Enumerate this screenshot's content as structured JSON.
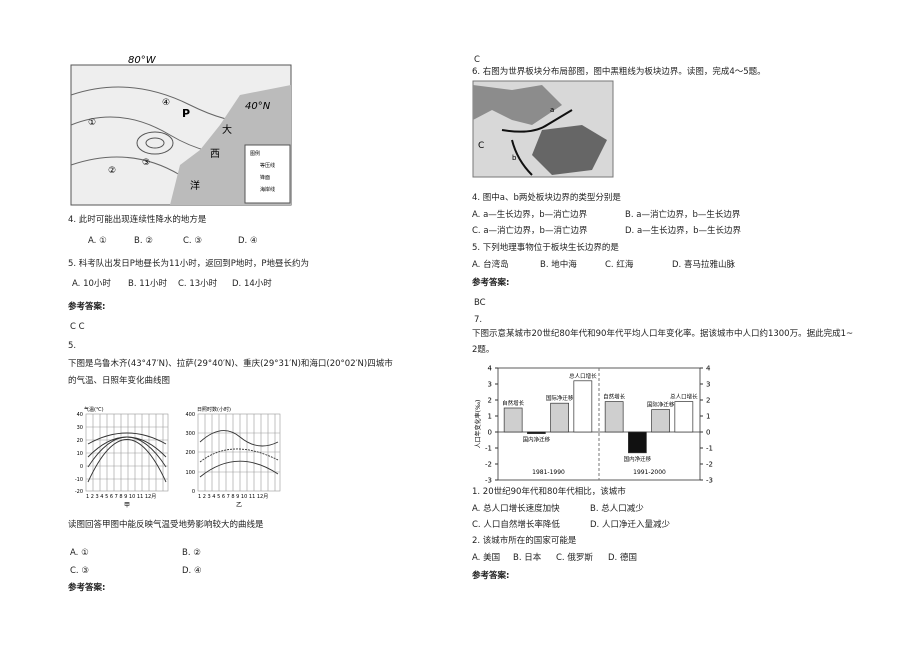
{
  "left": {
    "fig1": {
      "labels": [
        "80°W",
        "40°N",
        "P",
        "大",
        "西",
        "洋",
        "①",
        "②",
        "③",
        "④"
      ],
      "legend": [
        "图例",
        "等压线",
        "锋面",
        "海岸线"
      ]
    },
    "q4": {
      "stem": "4. 此时可能出现连续性降水的地方是",
      "options": [
        "A. ①",
        "B. ②",
        "C. ③",
        "D. ④"
      ]
    },
    "q5": {
      "stem": "5. 科考队出发日P地昼长为11小时，返回到P地时，P地昼长约为",
      "options": [
        "A. 10小时",
        "B. 11小时",
        "C. 13小时",
        "D. 14小时"
      ]
    },
    "answer_label": "参考答案:",
    "answer": "C  C",
    "q_num": "5.",
    "intro": [
      "下图是乌鲁木齐(43°47′N)、拉萨(29°40′N)、重庆(29°31′N)和海口(20°02′N)四城市",
      "的气温、日照年变化曲线图"
    ],
    "fig2": {
      "left_title": "气温(℃)",
      "right_title": "日照时数(小时)",
      "left_ticks": [
        "40",
        "30",
        "20",
        "10",
        "0",
        "-10",
        "-20"
      ],
      "right_ticks": [
        "400",
        "300",
        "200",
        "100",
        "0"
      ],
      "months": "1 2 3 4 5 6 7 8 9 10 11 12月",
      "captions": [
        "甲",
        "乙"
      ]
    },
    "question": "读图回答甲图中能反映气温受地势影响较大的曲线是",
    "options": [
      "A. ①",
      "B. ②",
      "C. ③",
      "D. ④"
    ],
    "answer_label2": "参考答案:"
  },
  "right": {
    "pre": "C",
    "q6": "6. 右图为世界板块分布局部图，图中黑粗线为板块边界。读图，完成4～5题。",
    "fig3": {
      "labels": [
        "a",
        "b",
        "C"
      ]
    },
    "q4": {
      "stem": "4. 图中a、b两处板块边界的类型分别是",
      "options": [
        "A. a—生长边界，b—消亡边界",
        "B. a—消亡边界，b—生长边界",
        "C. a—消亡边界，b—消亡边界",
        "D. a—生长边界，b—生长边界"
      ]
    },
    "q5": {
      "stem": "5. 下列地理事物位于板块生长边界的是",
      "options": [
        "A. 台湾岛",
        "B. 地中海",
        "C. 红海",
        "D. 喜马拉雅山脉"
      ]
    },
    "answer_label": "参考答案:",
    "answer": "BC",
    "q_num": "7.",
    "intro": [
      "下图示意某城市20世纪80年代和90年代平均人口年变化率。据该城市中人口约1300万。据此完成1~",
      "2题。"
    ],
    "fig4": {
      "type": "bar",
      "ylabel": "人口年变化率(‰)",
      "categories": [
        "1981-1990",
        "1991-2000"
      ],
      "series": [
        {
          "name": "自然增长",
          "color": "#cfcfcf",
          "values": [
            1.5,
            1.9
          ]
        },
        {
          "name": "国内净迁移",
          "color": "#111111",
          "values": [
            -0.1,
            -1.3
          ]
        },
        {
          "name": "国际净迁移",
          "color": "#cfcfcf",
          "values": [
            1.8,
            1.4
          ]
        },
        {
          "name": "总人口增长",
          "color": "#ffffff",
          "values": [
            3.2,
            1.9
          ]
        }
      ],
      "ylim": [
        -3,
        4
      ],
      "yticks": [
        -3,
        -2,
        -1,
        0,
        1,
        2,
        3,
        4
      ]
    },
    "q1": {
      "stem": "1. 20世纪90年代和80年代相比，该城市",
      "options": [
        "A. 总人口增长速度加快",
        "B. 总人口减少",
        "C. 人口自然增长率降低",
        "D. 人口净迁入量减少"
      ]
    },
    "q2": {
      "stem": "2. 该城市所在的国家可能是",
      "options": [
        "A. 美国",
        "B. 日本",
        "C. 俄罗斯",
        "D. 德国"
      ]
    }
  }
}
